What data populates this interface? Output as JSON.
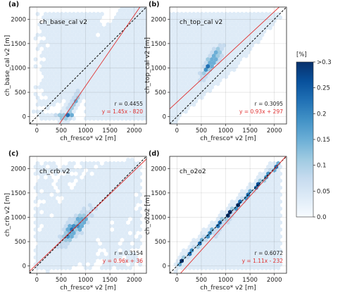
{
  "colors": {
    "fit_line": "#e03030",
    "identity_line": "#000000",
    "colormap": [
      "#f7fbff",
      "#deebf7",
      "#c6dbef",
      "#9ecae1",
      "#6baed6",
      "#4292c6",
      "#2171b5",
      "#08519c",
      "#08306b"
    ]
  },
  "colorbar": {
    "title": "[%]",
    "ticks": [
      "0.0",
      "0.05",
      "0.1",
      "0.15",
      "0.2",
      "0.25",
      ">0.3"
    ],
    "range": [
      0.0,
      0.3
    ]
  },
  "chart_data": [
    {
      "type": "scatter",
      "panel_label": "(a)",
      "title": "ch_base_cal v2",
      "xlabel": "ch_fresco* v2 [m]",
      "ylabel": "ch_base_cal v2 [m]",
      "xlim": [
        -150,
        2250
      ],
      "ylim": [
        -150,
        2250
      ],
      "xticks": [
        0,
        500,
        1000,
        1500,
        2000
      ],
      "yticks": [
        0,
        500,
        1000,
        1500,
        2000
      ],
      "grid": true,
      "r_text": "r = 0.4455",
      "fit_text": "y = 1.45x - 820",
      "fit": {
        "slope": 1.45,
        "intercept": -820
      },
      "density": "hexbin; dense band along y=0 from x≈50–750, cloud along fit line x≈550–1000, sparse fill above diagonal"
    },
    {
      "type": "scatter",
      "panel_label": "(b)",
      "title": "ch_top_cal v2",
      "xlabel": "ch_fresco* v2 [m]",
      "ylabel": "ch_top_cal v2 [m]",
      "xlim": [
        -150,
        2250
      ],
      "ylim": [
        -150,
        2250
      ],
      "xticks": [
        0,
        500,
        1000,
        1500,
        2000
      ],
      "yticks": [
        0,
        500,
        1000,
        1500,
        2000
      ],
      "grid": true,
      "r_text": "r = 0.3095",
      "fit_text": "y = 0.93x + 297",
      "fit": {
        "slope": 0.93,
        "intercept": 297
      },
      "density": "hexbin; dense cloud above diagonal x≈400–1000, y≈700–1700"
    },
    {
      "type": "scatter",
      "panel_label": "(c)",
      "title": "ch_crb v2",
      "xlabel": "ch_fresco* v2 [m]",
      "ylabel": "ch_crb v2 [m]",
      "xlim": [
        -150,
        2250
      ],
      "ylim": [
        -150,
        2250
      ],
      "xticks": [
        0,
        500,
        1000,
        1500,
        2000
      ],
      "yticks": [
        0,
        500,
        1000,
        1500,
        2000
      ],
      "grid": true,
      "r_text": "r = 0.3154",
      "fit_text": "y = 0.96x + 36",
      "fit": {
        "slope": 0.96,
        "intercept": 36
      },
      "density": "hexbin; cloud around diagonal x≈300–1200, y≈300–1300"
    },
    {
      "type": "scatter",
      "panel_label": "(d)",
      "title": "ch_o2o2",
      "xlabel": "ch_fresco* v2 [m]",
      "ylabel": "ch_o2o2 [m]",
      "xlim": [
        -150,
        2250
      ],
      "ylim": [
        -150,
        2250
      ],
      "xticks": [
        0,
        500,
        1000,
        1500,
        2000
      ],
      "yticks": [
        0,
        500,
        1000,
        1500,
        2000
      ],
      "grid": true,
      "r_text": "r = 0.6072",
      "fit_text": "y = 1.11x - 232",
      "fit": {
        "slope": 1.11,
        "intercept": -232
      },
      "density": "hexbin; very dense narrow band along the 1:1 line from x≈0–2000, secondary branch below diagonal"
    }
  ]
}
